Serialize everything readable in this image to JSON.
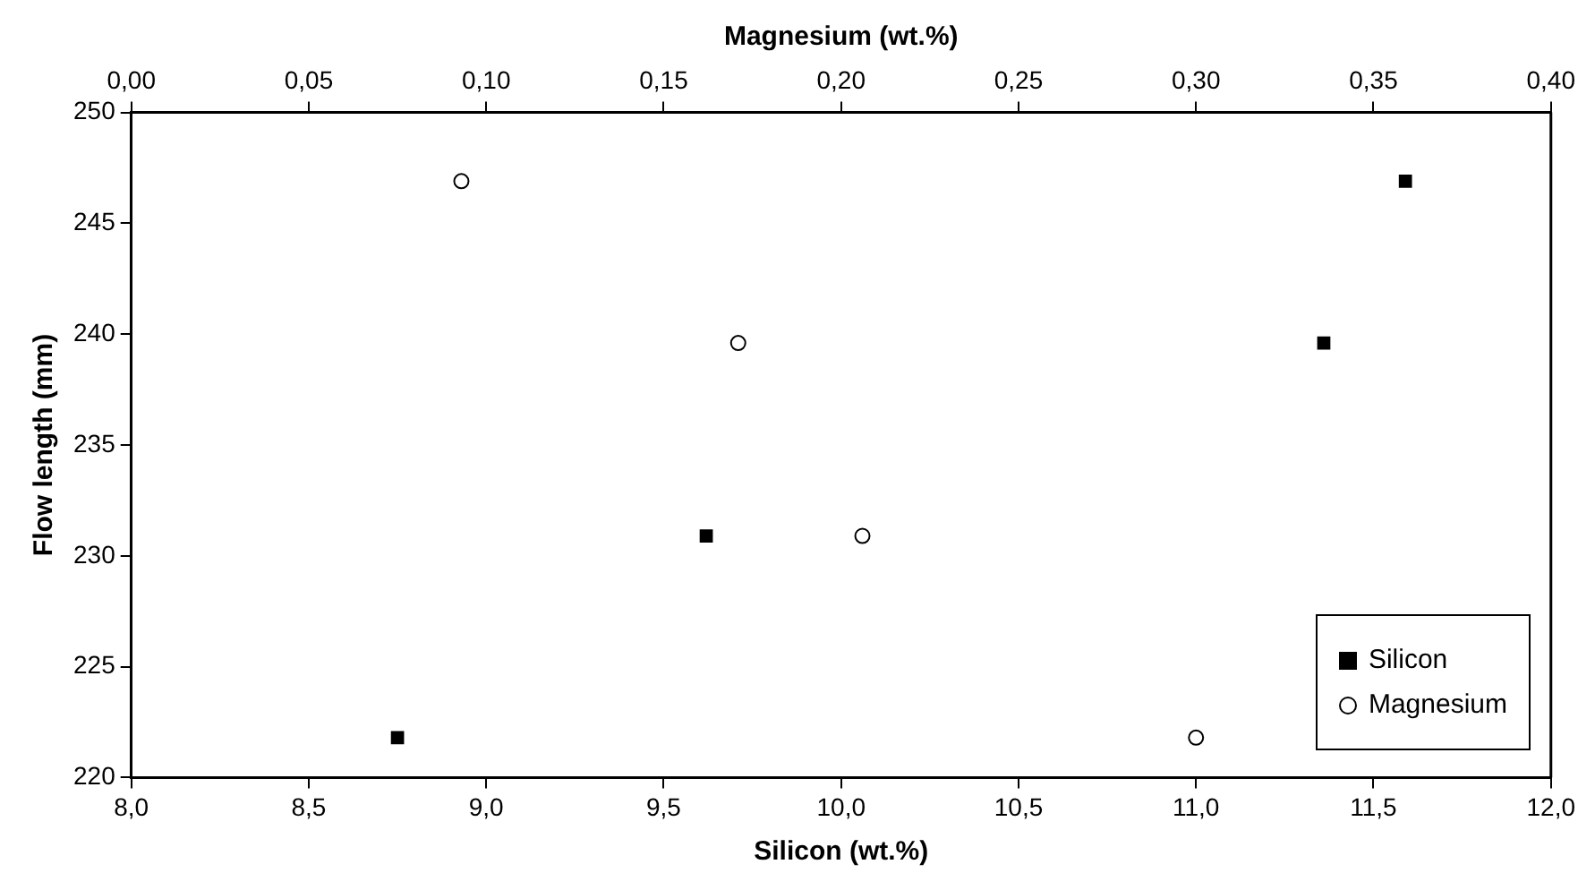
{
  "chart_data": {
    "type": "scatter",
    "xlabel": "Silicon (wt.%)",
    "x2label": "Magnesium (wt.%)",
    "ylabel": "Flow length (mm)",
    "xlim": [
      8,
      12
    ],
    "xticks": [
      {
        "value": 8,
        "label": "8,0"
      },
      {
        "value": 8.5,
        "label": "8,5"
      },
      {
        "value": 9,
        "label": "9,0"
      },
      {
        "value": 9.5,
        "label": "9,5"
      },
      {
        "value": 10,
        "label": "10,0"
      },
      {
        "value": 10.5,
        "label": "10,5"
      },
      {
        "value": 11,
        "label": "11,0"
      },
      {
        "value": 11.5,
        "label": "11,5"
      },
      {
        "value": 12,
        "label": "12,0"
      }
    ],
    "x2lim": [
      0,
      0.4
    ],
    "x2ticks": [
      {
        "value": 0,
        "label": "0,00"
      },
      {
        "value": 0.05,
        "label": "0,05"
      },
      {
        "value": 0.1,
        "label": "0,10"
      },
      {
        "value": 0.15,
        "label": "0,15"
      },
      {
        "value": 0.2,
        "label": "0,20"
      },
      {
        "value": 0.25,
        "label": "0,25"
      },
      {
        "value": 0.3,
        "label": "0,30"
      },
      {
        "value": 0.35,
        "label": "0,35"
      },
      {
        "value": 0.4,
        "label": "0,40"
      }
    ],
    "ylim": [
      220,
      250
    ],
    "yticks": [
      220,
      225,
      230,
      235,
      240,
      245,
      250
    ],
    "grid": false,
    "legend": "bottom right",
    "series": [
      {
        "name": "Silicon",
        "color": "#000000",
        "marker": "square",
        "x": [
          8.75,
          9.62,
          11.36,
          11.59
        ],
        "values": [
          221.8,
          230.9,
          239.6,
          246.9
        ]
      },
      {
        "name": "Magnesium",
        "color": "#000000",
        "marker": "circle",
        "axis": "x2",
        "x": [
          0.093,
          0.171,
          0.206,
          0.3
        ],
        "values": [
          246.9,
          239.6,
          230.9,
          221.8
        ]
      }
    ]
  }
}
